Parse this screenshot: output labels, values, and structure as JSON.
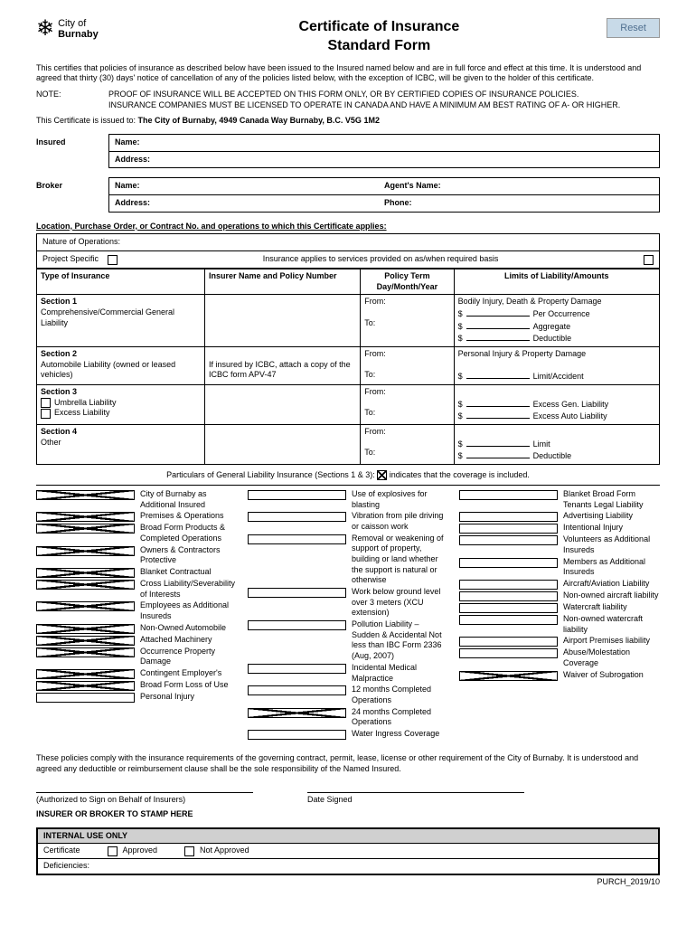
{
  "reset_label": "Reset",
  "logo": {
    "city_of": "City of",
    "name": "Burnaby"
  },
  "title": {
    "line1": "Certificate of Insurance",
    "line2": "Standard Form"
  },
  "intro": "This certifies that policies of insurance as described below have been issued to the Insured named below and are in full force and effect at this time. It is understood and agreed that thirty (30) days' notice of cancellation of any of the policies listed below, with the exception of ICBC, will be given to the holder of this certificate.",
  "note": {
    "label": "NOTE:",
    "line1": "PROOF OF INSURANCE WILL BE ACCEPTED ON THIS FORM ONLY, OR BY CERTIFIED COPIES OF INSURANCE POLICIES.",
    "line2": "INSURANCE COMPANIES MUST BE LICENSED TO OPERATE IN CANADA AND HAVE A MINIMUM AM BEST RATING OF A- OR HIGHER."
  },
  "issued_prefix": "This Certificate is issued to: ",
  "issued_to": "The City of Burnaby, 4949 Canada Way Burnaby, B.C. V5G 1M2",
  "insured": {
    "label": "Insured",
    "name": "Name:",
    "address": "Address:"
  },
  "broker": {
    "label": "Broker",
    "name": "Name:",
    "agent": "Agent's Name:",
    "address": "Address:",
    "phone": "Phone:"
  },
  "location_header": "Location, Purchase Order, or Contract No. and operations to which this Certificate applies:",
  "nature_label": "Nature of Operations:",
  "project_specific": "Project Specific",
  "insurance_applies": "Insurance applies to services provided on as/when required basis",
  "table": {
    "headers": {
      "type": "Type of Insurance",
      "insurer": "Insurer Name and Policy Number",
      "term": "Policy Term Day/Month/Year",
      "limits": "Limits of Liability/Amounts"
    },
    "from": "From:",
    "to": "To:",
    "s1": {
      "title": "Section 1",
      "desc": "Comprehensive/Commercial General Liability",
      "limits_title": "Bodily Injury, Death & Property Damage",
      "l1": "Per Occurrence",
      "l2": "Aggregate",
      "l3": "Deductible"
    },
    "s2": {
      "title": "Section 2",
      "desc": "Automobile Liability (owned or leased vehicles)",
      "insurer_note": "If insured by ICBC, attach a copy of the ICBC form APV-47",
      "limits_title": "Personal Injury & Property Damage",
      "l1": "Limit/Accident"
    },
    "s3": {
      "title": "Section 3",
      "opt1": "Umbrella Liability",
      "opt2": "Excess Liability",
      "l1": "Excess Gen. Liability",
      "l2": "Excess Auto Liability"
    },
    "s4": {
      "title": "Section 4",
      "desc": "Other",
      "l1": "Limit",
      "l2": "Deductible"
    }
  },
  "particulars": {
    "prefix": "Particulars of General Liability Insurance (Sections 1 & 3): ",
    "suffix": " indicates that the coverage is included."
  },
  "coverage": {
    "col1": [
      {
        "c": true,
        "t": "City of Burnaby as Additional Insured"
      },
      {
        "c": true,
        "t": "Premises & Operations"
      },
      {
        "c": true,
        "t": "Broad Form Products & Completed Operations"
      },
      {
        "c": true,
        "t": "Owners & Contractors Protective"
      },
      {
        "c": true,
        "t": "Blanket Contractual"
      },
      {
        "c": true,
        "t": "Cross Liability/Severability of Interests"
      },
      {
        "c": true,
        "t": "Employees as Additional Insureds"
      },
      {
        "c": true,
        "t": "Non-Owned Automobile"
      },
      {
        "c": true,
        "t": "Attached Machinery"
      },
      {
        "c": true,
        "t": "Occurrence Property Damage"
      },
      {
        "c": true,
        "t": "Contingent Employer's"
      },
      {
        "c": true,
        "t": "Broad Form Loss of Use"
      },
      {
        "c": false,
        "t": "Personal Injury"
      }
    ],
    "col2": [
      {
        "c": false,
        "t": "Use of explosives for blasting"
      },
      {
        "c": false,
        "t": "Vibration from pile driving or caisson work"
      },
      {
        "c": false,
        "t": "Removal or weakening of support of property, building or land whether the support is natural or otherwise"
      },
      {
        "c": false,
        "t": "Work below ground level over 3 meters (XCU extension)"
      },
      {
        "c": false,
        "t": "Pollution Liability – Sudden & Accidental Not less than IBC Form 2336 (Aug, 2007)"
      },
      {
        "c": false,
        "t": "Incidental Medical Malpractice"
      },
      {
        "c": false,
        "t": "12 months Completed Operations"
      },
      {
        "c": true,
        "t": "24 months Completed Operations"
      },
      {
        "c": false,
        "t": "Water Ingress Coverage"
      }
    ],
    "col3": [
      {
        "c": false,
        "t": "Blanket Broad Form Tenants Legal Liability"
      },
      {
        "c": false,
        "t": "Advertising Liability"
      },
      {
        "c": false,
        "t": "Intentional Injury"
      },
      {
        "c": false,
        "t": "Volunteers as Additional Insureds"
      },
      {
        "c": false,
        "t": "Members as Additional Insureds"
      },
      {
        "c": false,
        "t": "Aircraft/Aviation Liability"
      },
      {
        "c": false,
        "t": "Non-owned aircraft liability"
      },
      {
        "c": false,
        "t": "Watercraft liability"
      },
      {
        "c": false,
        "t": "Non-owned watercraft liability"
      },
      {
        "c": false,
        "t": "Airport Premises liability"
      },
      {
        "c": false,
        "t": "Abuse/Molestation Coverage"
      },
      {
        "c": true,
        "t": "Waiver of Subrogation"
      }
    ]
  },
  "compliance": "These policies comply with the insurance requirements of the governing contract, permit, lease, license or other requirement of the City of Burnaby. It is understood and agreed any deductible or reimbursement clause shall be the sole responsibility of the Named Insured.",
  "sig": {
    "auth": "(Authorized to Sign on Behalf of Insurers)",
    "date": "Date Signed"
  },
  "stamp": "INSURER OR BROKER TO STAMP HERE",
  "internal": {
    "header": "INTERNAL USE ONLY",
    "cert": "Certificate",
    "approved": "Approved",
    "not_approved": "Not Approved",
    "def": "Deficiencies:"
  },
  "footer": "PURCH_2019/10"
}
